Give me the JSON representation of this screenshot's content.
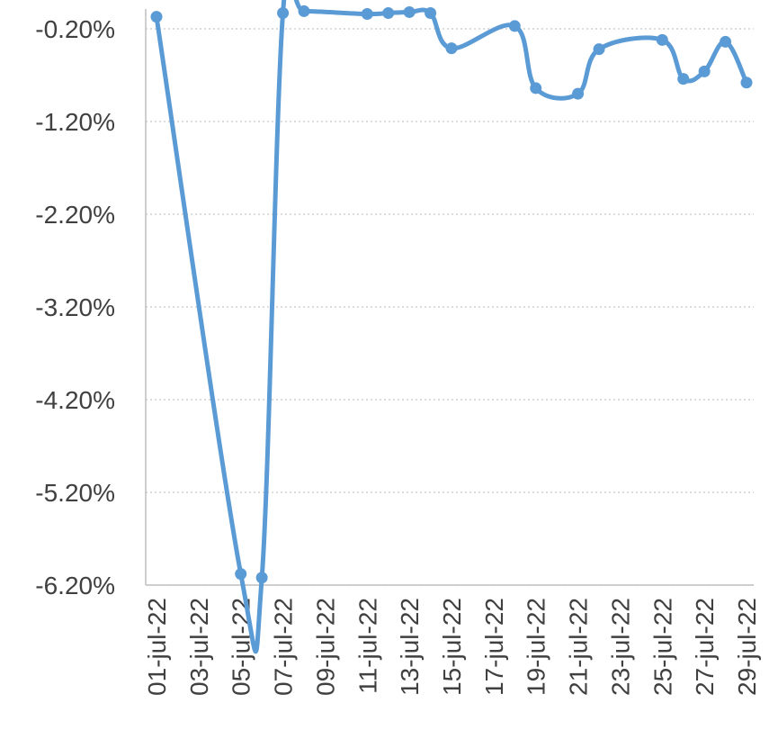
{
  "chart_data": {
    "type": "line",
    "title": "",
    "xlabel": "",
    "ylabel": "",
    "x_tick_labels": [
      "01-jul-22",
      "03-jul-22",
      "05-jul-22",
      "07-jul-22",
      "09-jul-22",
      "11-jul-22",
      "13-jul-22",
      "15-jul-22",
      "17-jul-22",
      "19-jul-22",
      "21-jul-22",
      "23-jul-22",
      "25-jul-22",
      "27-jul-22",
      "29-jul-22"
    ],
    "y_tick_labels": [
      "-0.20%",
      "-1.20%",
      "-2.20%",
      "-3.20%",
      "-4.20%",
      "-5.20%",
      "-6.20%"
    ],
    "y_ticks": [
      -0.2,
      -1.2,
      -2.2,
      -3.2,
      -4.2,
      -5.2,
      -6.2
    ],
    "ylim": [
      -6.2,
      -0.2
    ],
    "xlim": [
      "01-jul-22",
      "29-jul-22"
    ],
    "grid": true,
    "smooth": true,
    "series": [
      {
        "color": "#5b9bd5",
        "points": [
          {
            "x": "01-jul-22",
            "y": -0.07
          },
          {
            "x": "05-jul-22",
            "y": -6.08
          },
          {
            "x": "06-jul-22",
            "y": -6.12
          },
          {
            "x": "07-jul-22",
            "y": -0.03
          },
          {
            "x": "08-jul-22",
            "y": -0.01
          },
          {
            "x": "11-jul-22",
            "y": -0.04
          },
          {
            "x": "12-jul-22",
            "y": -0.03
          },
          {
            "x": "13-jul-22",
            "y": -0.02
          },
          {
            "x": "14-jul-22",
            "y": -0.03
          },
          {
            "x": "15-jul-22",
            "y": -0.41
          },
          {
            "x": "18-jul-22",
            "y": -0.17
          },
          {
            "x": "19-jul-22",
            "y": -0.84
          },
          {
            "x": "21-jul-22",
            "y": -0.9
          },
          {
            "x": "22-jul-22",
            "y": -0.42
          },
          {
            "x": "25-jul-22",
            "y": -0.32
          },
          {
            "x": "26-jul-22",
            "y": -0.74
          },
          {
            "x": "27-jul-22",
            "y": -0.66
          },
          {
            "x": "28-jul-22",
            "y": -0.34
          },
          {
            "x": "29-jul-22",
            "y": -0.78
          }
        ]
      }
    ]
  }
}
